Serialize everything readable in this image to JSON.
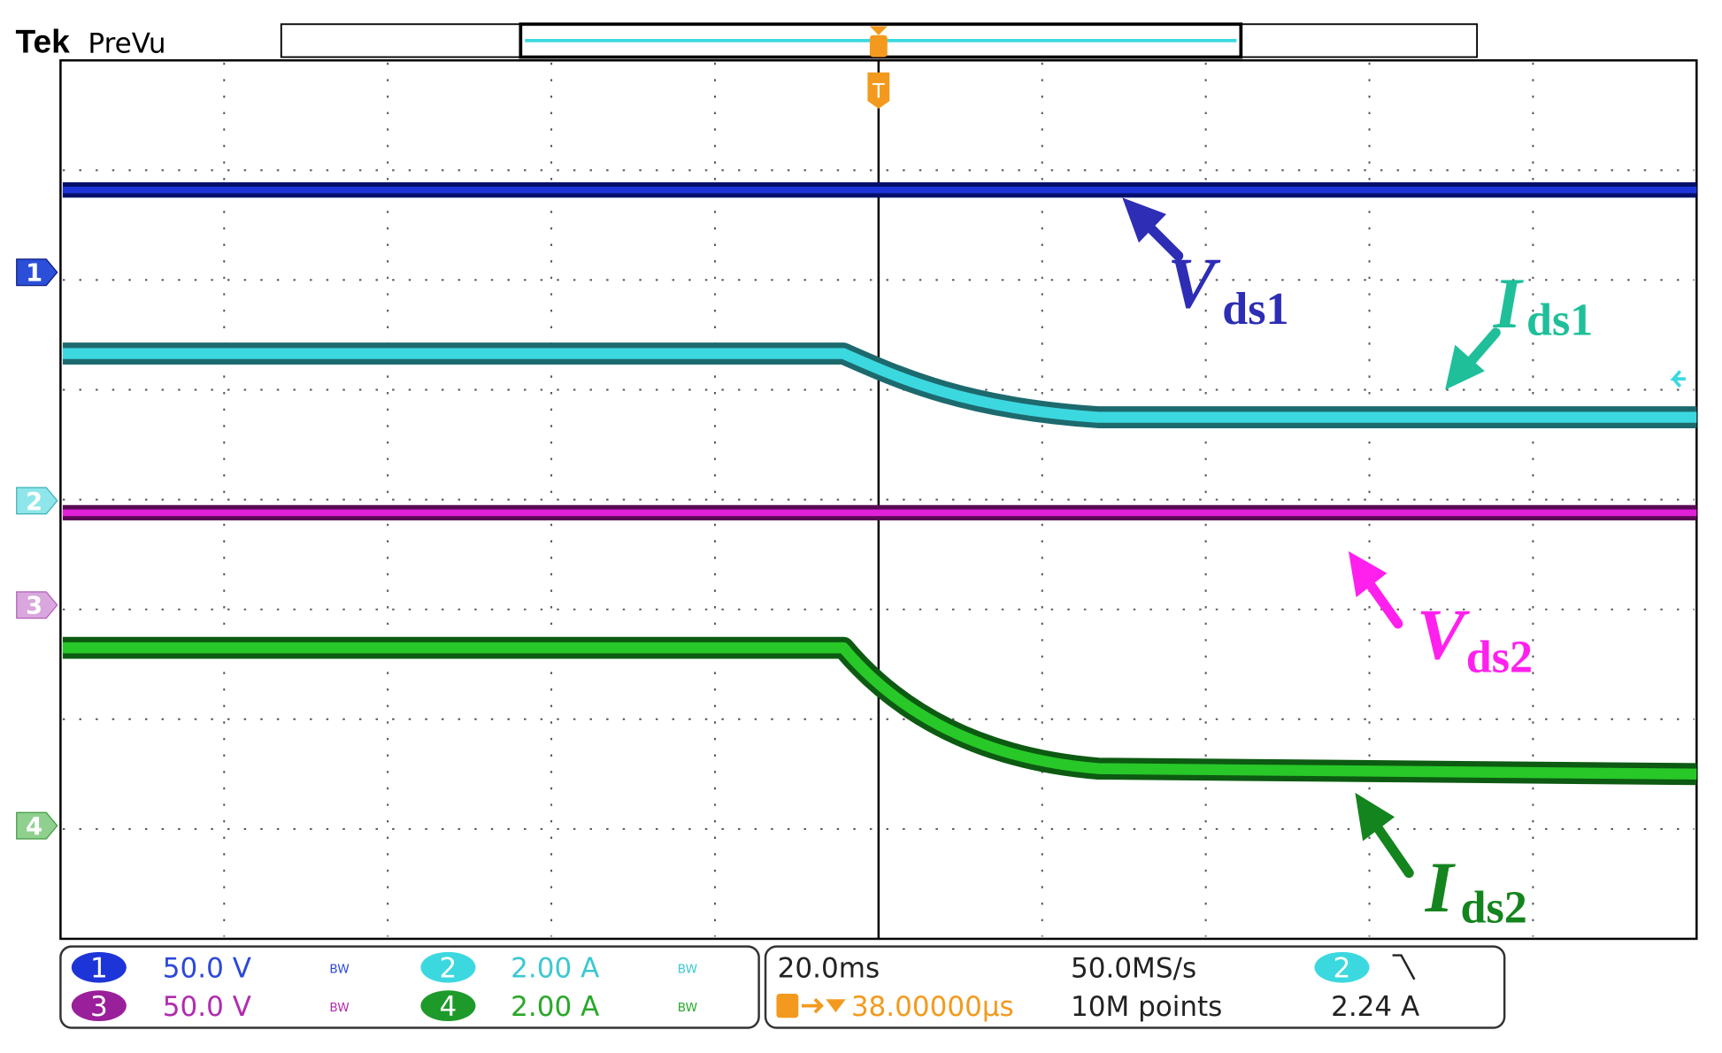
{
  "header": {
    "brand": "Tek",
    "mode": "PreVu"
  },
  "trigger_marker": "T",
  "channel_markers": [
    "1",
    "2",
    "3",
    "4"
  ],
  "annotations": [
    {
      "symbol": "V",
      "subscript": "ds1"
    },
    {
      "symbol": "I",
      "subscript": "ds1"
    },
    {
      "symbol": "V",
      "subscript": "ds2"
    },
    {
      "symbol": "I",
      "subscript": "ds2"
    }
  ],
  "channels": [
    {
      "id": "1",
      "scale": "50.0 V",
      "bw": "BW"
    },
    {
      "id": "2",
      "scale": "2.00 A",
      "bw": "BW"
    },
    {
      "id": "3",
      "scale": "50.0 V",
      "bw": "BW"
    },
    {
      "id": "4",
      "scale": "2.00 A",
      "bw": "BW"
    }
  ],
  "acquisition": {
    "time_scale": "20.0ms",
    "trigger_offset": "38.00000µs",
    "sample_rate": "50.0MS/s",
    "record_length": "10M points",
    "trigger_source": "2",
    "trigger_level": "2.24 A"
  }
}
